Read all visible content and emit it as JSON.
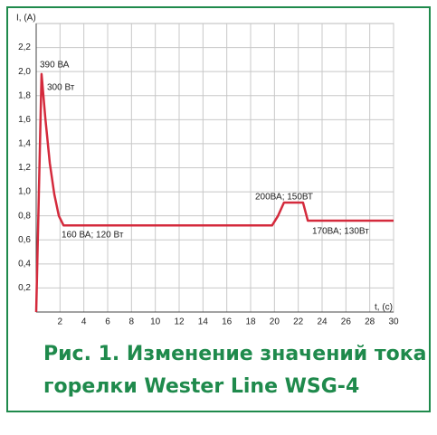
{
  "chart_data": {
    "type": "line",
    "title": [
      "Рис. 1. Изменение значений тока",
      "горелки Wester Line WSG-4"
    ],
    "y_label": "I, (A)",
    "x_label": "t, (c)",
    "x": [
      0,
      0.45,
      0.76,
      1.14,
      1.52,
      1.9,
      2.3,
      19.8,
      20.3,
      20.8,
      22.4,
      22.8,
      30
    ],
    "series": [
      {
        "color": "#d42a3c",
        "values": [
          0,
          1.98,
          1.62,
          1.24,
          0.98,
          0.8,
          0.72,
          0.72,
          0.8,
          0.91,
          0.91,
          0.76,
          0.76
        ]
      }
    ],
    "xlim": [
      0,
      30
    ],
    "ylim": [
      0,
      2.4
    ],
    "xticks": [
      2,
      4,
      6,
      8,
      10,
      12,
      14,
      16,
      18,
      20,
      22,
      24,
      26,
      28,
      30
    ],
    "yticks": [
      {
        "value": 0.2,
        "label": "0,2"
      },
      {
        "value": 0.4,
        "label": "0,4"
      },
      {
        "value": 0.6,
        "label": "0,6"
      },
      {
        "value": 0.8,
        "label": "0,8"
      },
      {
        "value": 1.0,
        "label": "1,0"
      },
      {
        "value": 1.2,
        "label": "1,2"
      },
      {
        "value": 1.4,
        "label": "1,4"
      },
      {
        "value": 1.6,
        "label": "1,6"
      },
      {
        "value": 1.8,
        "label": "1,8"
      },
      {
        "value": 2.0,
        "label": "2,0"
      },
      {
        "value": 2.2,
        "label": "2,2"
      }
    ],
    "grid": true,
    "annotations": [
      "390 ВА",
      "300 Вт",
      "160 ВА; 120 Вт",
      "200ВА; 150ВТ",
      "170ВА; 130Вт"
    ]
  }
}
